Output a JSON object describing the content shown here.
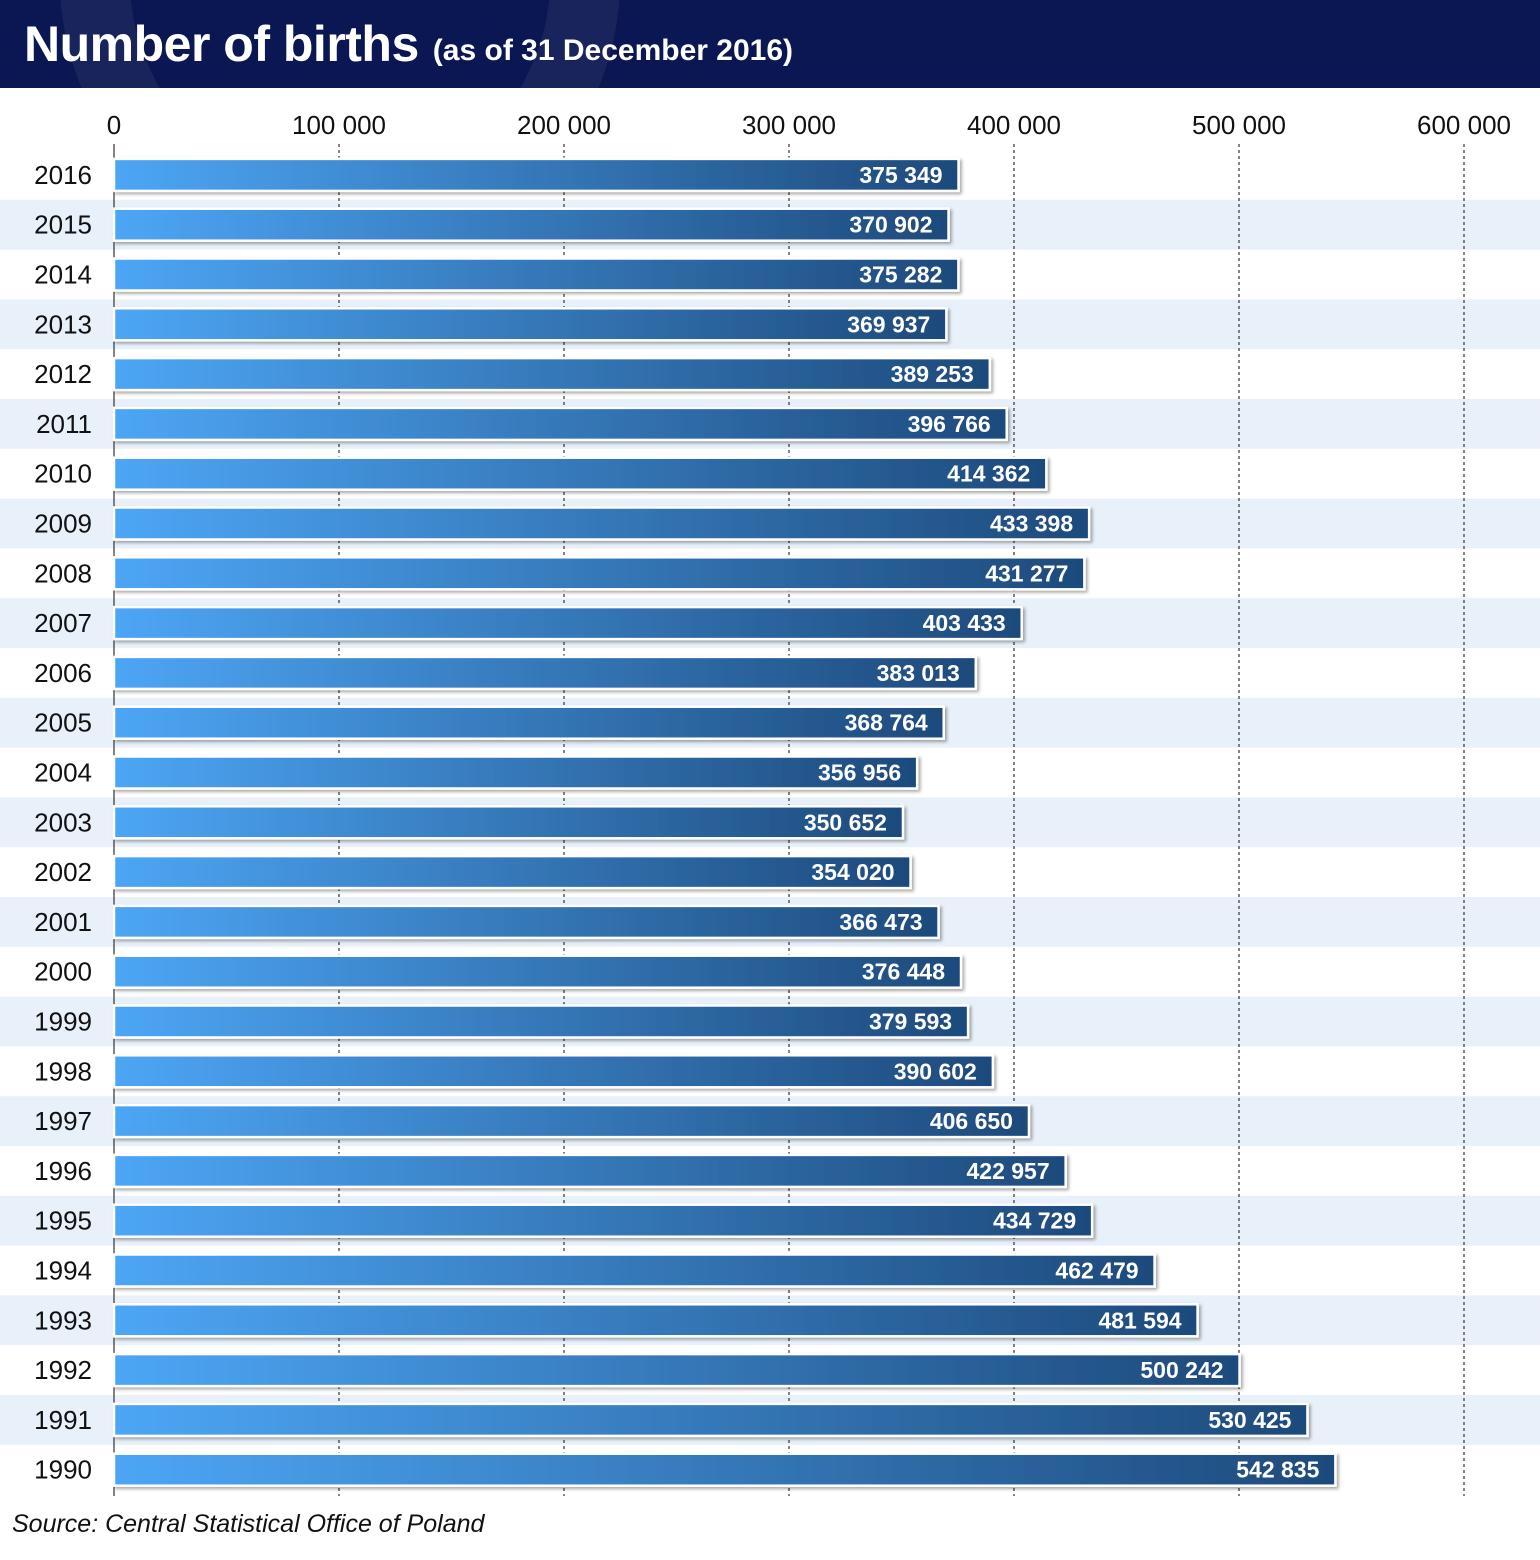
{
  "header": {
    "title": "Number of births",
    "subtitle": "(as of 31 December 2016)"
  },
  "source": "Source: Central Statistical Office of Poland",
  "colors": {
    "header_bg": "#0b1752",
    "bar_start": "#4da6f5",
    "bar_end": "#1e4a7c",
    "stripe": "#e8f0fa",
    "label_text": "#ffffff"
  },
  "chart_data": {
    "type": "bar",
    "orientation": "horizontal",
    "title": "Number of births",
    "subtitle": "(as of 31 December 2016)",
    "xlim": [
      0,
      600000
    ],
    "x_ticks": [
      0,
      100000,
      200000,
      300000,
      400000,
      500000,
      600000
    ],
    "x_tick_labels": [
      "0",
      "100 000",
      "200 000",
      "300 000",
      "400 000",
      "500 000",
      "600 000"
    ],
    "x_axis_position": "top",
    "grid": "vertical dashed",
    "categories": [
      "2016",
      "2015",
      "2014",
      "2013",
      "2012",
      "2011",
      "2010",
      "2009",
      "2008",
      "2007",
      "2006",
      "2005",
      "2004",
      "2003",
      "2002",
      "2001",
      "2000",
      "1999",
      "1998",
      "1997",
      "1996",
      "1995",
      "1994",
      "1993",
      "1992",
      "1991",
      "1990"
    ],
    "values": [
      375349,
      370902,
      375282,
      369937,
      389253,
      396766,
      414362,
      433398,
      431277,
      403433,
      383013,
      368764,
      356956,
      350652,
      354020,
      366473,
      376448,
      379593,
      390602,
      406650,
      422957,
      434729,
      462479,
      481594,
      500242,
      530425,
      542835
    ],
    "value_labels": [
      "375 349",
      "370 902",
      "375 282",
      "369 937",
      "389 253",
      "396 766",
      "414 362",
      "433 398",
      "431 277",
      "403 433",
      "383 013",
      "368 764",
      "356 956",
      "350 652",
      "354 020",
      "366 473",
      "376 448",
      "379 593",
      "390 602",
      "406 650",
      "422 957",
      "434 729",
      "462 479",
      "481 594",
      "500 242",
      "530 425",
      "542 835"
    ]
  }
}
